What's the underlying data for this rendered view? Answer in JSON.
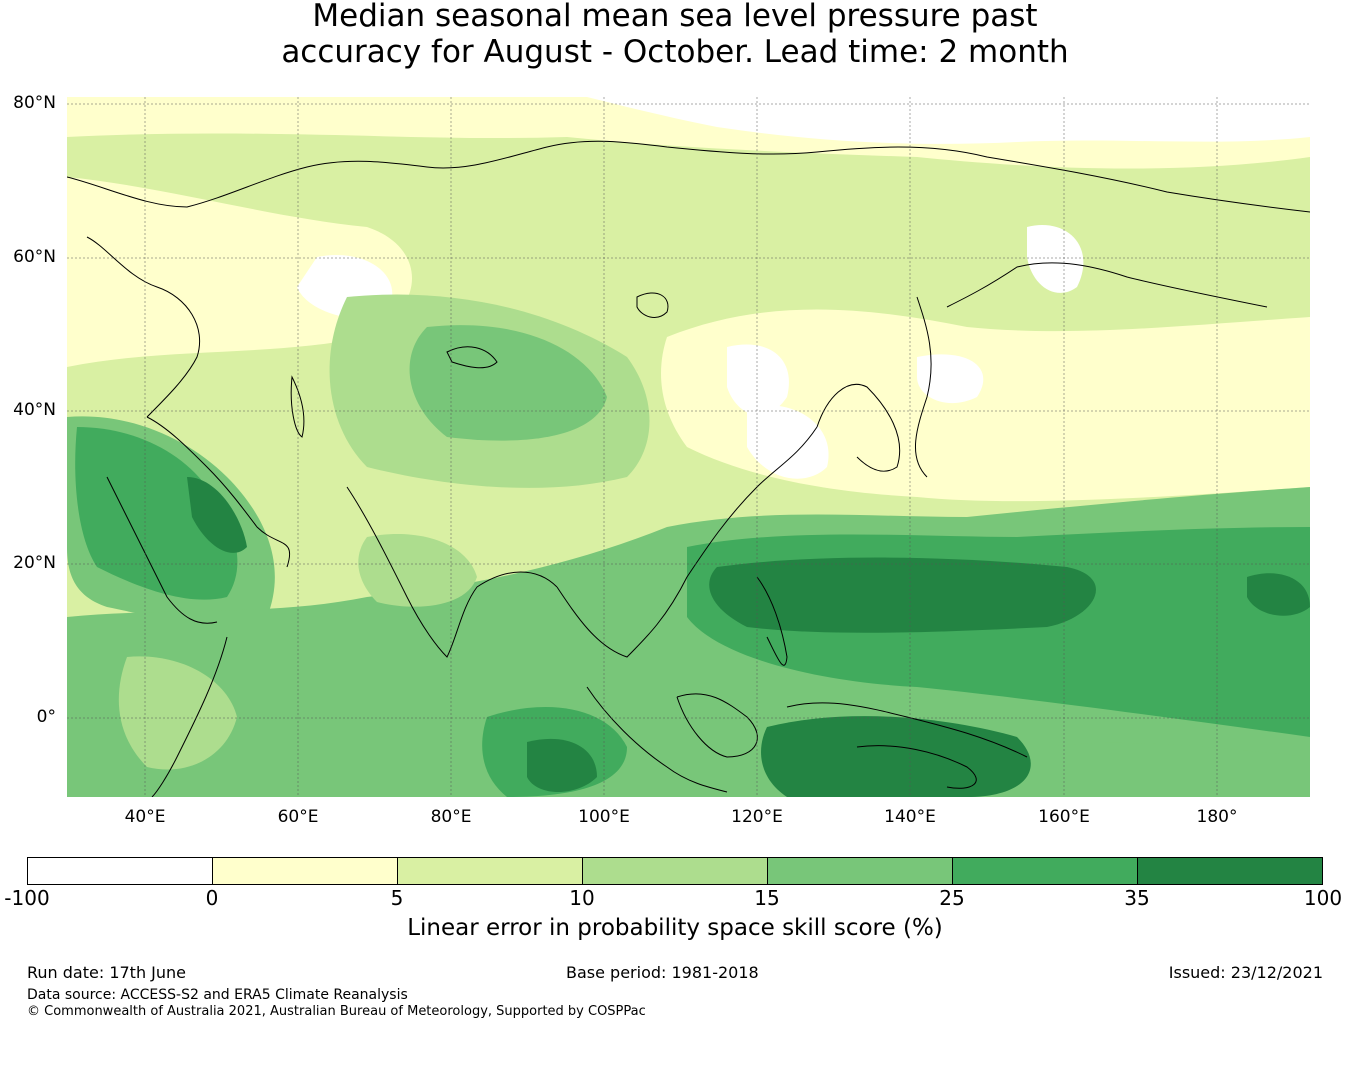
{
  "title": {
    "line1": "Median seasonal mean sea level pressure past",
    "line2": "accuracy for August - October. Lead time: 2 month"
  },
  "map": {
    "lat_labels": [
      "80°N",
      "60°N",
      "40°N",
      "20°N",
      "0°"
    ],
    "lon_labels": [
      "40°E",
      "60°E",
      "80°E",
      "100°E",
      "120°E",
      "140°E",
      "160°E",
      "180°"
    ],
    "coastline_color": "#000000",
    "gridline_color": "#555555"
  },
  "colorbar": {
    "label": "Linear error in probability space skill score (%)",
    "ticks": [
      "-100",
      "0",
      "5",
      "10",
      "15",
      "25",
      "35",
      "100"
    ],
    "colors": [
      "#ffffff",
      "#ffffcc",
      "#d9f0a3",
      "#addd8e",
      "#78c679",
      "#41ab5d",
      "#238443"
    ]
  },
  "footer": {
    "run_date": "Run date: 17th June",
    "base_period": "Base period: 1981-2018",
    "issued": "Issued: 23/12/2021",
    "data_source": "Data source: ACCESS-S2 and ERA5 Climate Reanalysis",
    "copyright": "© Commonwealth of Australia 2021, Australian Bureau of Meteorology, Supported by COSPPac"
  }
}
